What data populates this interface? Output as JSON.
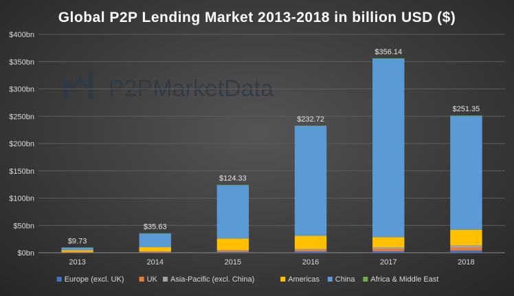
{
  "watermark": {
    "text": "P2PMarketData"
  },
  "chart_data": {
    "type": "bar",
    "stacked": true,
    "title": "Global  P2P  Lending  Market  2013-2018  in  billion  USD  ($)",
    "xlabel": "",
    "ylabel": "",
    "categories": [
      "2013",
      "2014",
      "2015",
      "2016",
      "2017",
      "2018"
    ],
    "yticks": [
      "$0bn",
      "$50bn",
      "$100bn",
      "$150bn",
      "$200bn",
      "$250bn",
      "$300bn",
      "$350bn",
      "$400bn"
    ],
    "ylim": [
      0,
      400
    ],
    "grid": true,
    "legend_position": "bottom",
    "totals": [
      9.73,
      35.63,
      124.33,
      232.72,
      356.14,
      251.35
    ],
    "total_labels": [
      "$9.73",
      "$35.63",
      "$124.33",
      "$232.72",
      "$356.14",
      "$251.35"
    ],
    "series": [
      {
        "name": "Europe (excl. UK)",
        "color": "#4472c4",
        "values": [
          0.3,
          0.6,
          1.5,
          2.5,
          3.0,
          4.0
        ]
      },
      {
        "name": "UK",
        "color": "#ed7d31",
        "values": [
          1.0,
          1.5,
          2.5,
          3.0,
          4.5,
          5.5
        ]
      },
      {
        "name": "Asia-Pacific (excl. China)",
        "color": "#a5a5a5",
        "values": [
          0.2,
          0.5,
          1.0,
          1.5,
          2.5,
          4.0
        ]
      },
      {
        "name": "Americas",
        "color": "#ffc000",
        "values": [
          3.0,
          7.5,
          21.0,
          24.0,
          18.5,
          28.5
        ]
      },
      {
        "name": "China",
        "color": "#5b9bd5",
        "values": [
          4.8,
          24.9,
          97.7,
          201.0,
          326.8,
          208.5
        ]
      },
      {
        "name": "Africa & Middle East",
        "color": "#70ad47",
        "values": [
          0.43,
          0.63,
          0.63,
          0.72,
          0.84,
          0.85
        ]
      }
    ]
  }
}
